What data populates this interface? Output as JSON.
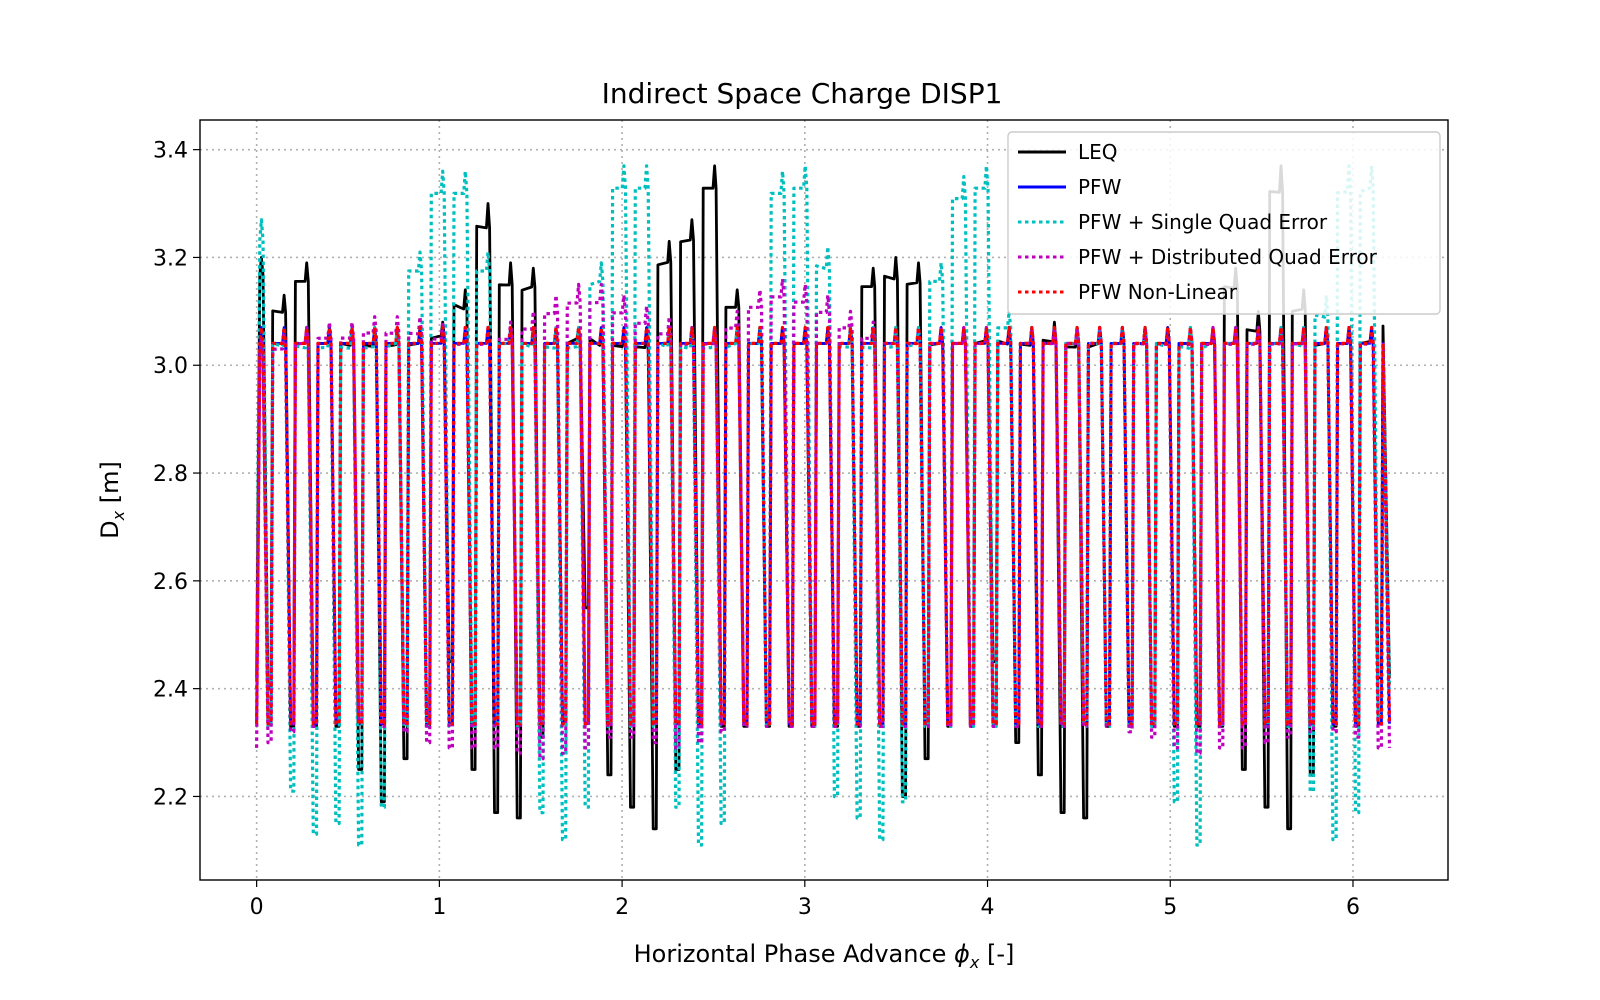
{
  "chart_data": {
    "type": "line",
    "title": "Indirect Space Charge DISP1",
    "xlabel_parts": [
      "Horizontal Phase Advance ",
      "ϕ",
      "x",
      " [-]"
    ],
    "ylabel_parts": [
      "D",
      "x",
      " [m]"
    ],
    "xlim": [
      -0.31,
      6.52
    ],
    "ylim": [
      2.045,
      3.455
    ],
    "xticks": [
      0,
      1,
      2,
      3,
      4,
      5,
      6
    ],
    "xtick_labels": [
      "0",
      "1",
      "2",
      "3",
      "4",
      "5",
      "6"
    ],
    "yticks": [
      2.2,
      2.4,
      2.6,
      2.8,
      3.0,
      3.2,
      3.4
    ],
    "ytick_labels": [
      "2.2",
      "2.4",
      "2.6",
      "2.8",
      "3.0",
      "3.2",
      "3.4"
    ],
    "grid": true,
    "legend_position": "top-right",
    "x_start": 0.0,
    "x_end": 6.2,
    "cells": 50,
    "series": [
      {
        "name": "LEQ",
        "color": "#000000",
        "style": "solid",
        "start": 2.42,
        "peaks": [
          3.2,
          3.13,
          3.19,
          3.07,
          3.07,
          3.07,
          3.07,
          3.07,
          3.08,
          3.14,
          3.3,
          3.19,
          3.18,
          3.07,
          3.07,
          3.07,
          3.07,
          3.07,
          3.23,
          3.27,
          3.37,
          3.14,
          3.07,
          3.07,
          3.07,
          3.07,
          3.07,
          3.18,
          3.2,
          3.19,
          3.07,
          3.07,
          3.07,
          3.07,
          3.07,
          3.08,
          3.07,
          3.07,
          3.07,
          3.07,
          3.07,
          3.07,
          3.07,
          3.18,
          3.1,
          3.37,
          3.14,
          3.07,
          3.07,
          3.07,
          3.1
        ],
        "troughs": [
          2.4,
          2.33,
          2.33,
          2.33,
          2.25,
          2.19,
          2.27,
          2.33,
          2.45,
          2.25,
          2.17,
          2.16,
          2.31,
          2.34,
          2.55,
          2.24,
          2.18,
          2.14,
          2.25,
          2.33,
          2.33,
          2.33,
          2.33,
          2.33,
          2.33,
          2.33,
          2.33,
          2.33,
          2.2,
          2.27,
          2.33,
          2.33,
          2.45,
          2.3,
          2.24,
          2.17,
          2.16,
          2.33,
          2.33,
          2.33,
          2.33,
          2.33,
          2.33,
          2.25,
          2.18,
          2.14,
          2.24,
          2.33,
          2.33,
          2.42
        ]
      },
      {
        "name": "PFW",
        "color": "#0000ff",
        "style": "solid",
        "start": 2.335,
        "peaks": [
          3.07,
          3.07,
          3.07,
          3.07,
          3.07,
          3.07,
          3.07,
          3.07,
          3.07,
          3.07,
          3.07,
          3.07,
          3.07,
          3.07,
          3.07,
          3.07,
          3.07,
          3.07,
          3.07,
          3.07,
          3.07,
          3.07,
          3.07,
          3.07,
          3.07,
          3.07,
          3.07,
          3.07,
          3.07,
          3.07,
          3.07,
          3.07,
          3.07,
          3.07,
          3.07,
          3.07,
          3.07,
          3.07,
          3.07,
          3.07,
          3.07,
          3.07,
          3.07,
          3.07,
          3.07,
          3.07,
          3.07,
          3.07,
          3.07,
          3.07,
          3.07
        ],
        "troughs": [
          2.335,
          2.335,
          2.335,
          2.335,
          2.335,
          2.335,
          2.335,
          2.335,
          2.335,
          2.335,
          2.335,
          2.335,
          2.335,
          2.335,
          2.335,
          2.335,
          2.335,
          2.335,
          2.335,
          2.335,
          2.335,
          2.335,
          2.335,
          2.335,
          2.335,
          2.335,
          2.335,
          2.335,
          2.335,
          2.335,
          2.335,
          2.335,
          2.335,
          2.335,
          2.335,
          2.335,
          2.335,
          2.335,
          2.335,
          2.335,
          2.335,
          2.335,
          2.335,
          2.335,
          2.335,
          2.335,
          2.335,
          2.335,
          2.335,
          2.335
        ]
      },
      {
        "name": "PFW + Single Quad Error",
        "color": "#00bfbf",
        "style": "dotted",
        "start": 2.4,
        "peaks": [
          3.27,
          3.07,
          3.07,
          3.07,
          3.07,
          3.07,
          3.07,
          3.21,
          3.36,
          3.36,
          3.21,
          3.07,
          3.07,
          3.07,
          3.07,
          3.19,
          3.37,
          3.37,
          3.07,
          3.07,
          3.07,
          3.07,
          3.07,
          3.36,
          3.37,
          3.22,
          3.07,
          3.07,
          3.07,
          3.07,
          3.19,
          3.35,
          3.37,
          3.1,
          3.07,
          3.07,
          3.07,
          3.07,
          3.07,
          3.07,
          3.07,
          3.07,
          3.07,
          3.07,
          3.07,
          3.07,
          3.07,
          3.13,
          3.37,
          3.37,
          3.07
        ],
        "troughs": [
          2.33,
          2.21,
          2.13,
          2.15,
          2.11,
          2.18,
          2.33,
          2.33,
          2.33,
          2.33,
          2.33,
          2.33,
          2.17,
          2.12,
          2.18,
          2.33,
          2.33,
          2.33,
          2.18,
          2.11,
          2.15,
          2.33,
          2.33,
          2.33,
          2.33,
          2.2,
          2.16,
          2.12,
          2.19,
          2.33,
          2.33,
          2.33,
          2.33,
          2.33,
          2.33,
          2.33,
          2.33,
          2.33,
          2.33,
          2.33,
          2.19,
          2.11,
          2.33,
          2.33,
          2.33,
          2.33,
          2.21,
          2.12,
          2.17,
          2.35
        ]
      },
      {
        "name": "PFW + Distributed Quad Error",
        "color": "#bf00bf",
        "style": "dotted",
        "start": 2.29,
        "peaks": [
          3.05,
          3.06,
          3.07,
          3.08,
          3.08,
          3.09,
          3.09,
          3.09,
          3.08,
          3.07,
          3.07,
          3.08,
          3.1,
          3.13,
          3.15,
          3.15,
          3.13,
          3.11,
          3.09,
          3.07,
          3.07,
          3.1,
          3.14,
          3.16,
          3.15,
          3.13,
          3.1,
          3.08,
          3.07,
          3.07,
          3.07,
          3.07,
          3.07,
          3.07,
          3.07,
          3.07,
          3.07,
          3.07,
          3.07,
          3.07,
          3.07,
          3.07,
          3.07,
          3.07,
          3.07,
          3.07,
          3.07,
          3.07,
          3.07,
          3.07,
          3.07
        ],
        "troughs": [
          2.3,
          2.32,
          2.33,
          2.34,
          2.34,
          2.33,
          2.32,
          2.3,
          2.29,
          2.29,
          2.29,
          2.28,
          2.27,
          2.28,
          2.29,
          2.31,
          2.31,
          2.3,
          2.29,
          2.3,
          2.32,
          2.33,
          2.33,
          2.33,
          2.33,
          2.33,
          2.33,
          2.33,
          2.33,
          2.33,
          2.33,
          2.33,
          2.33,
          2.33,
          2.33,
          2.33,
          2.33,
          2.33,
          2.32,
          2.31,
          2.29,
          2.28,
          2.29,
          2.29,
          2.3,
          2.31,
          2.32,
          2.32,
          2.31,
          2.29
        ]
      },
      {
        "name": "PFW Non-Linear",
        "color": "#ff0000",
        "style": "dotted",
        "start": 2.335,
        "peaks": [
          3.07,
          3.07,
          3.07,
          3.07,
          3.07,
          3.07,
          3.07,
          3.07,
          3.07,
          3.07,
          3.07,
          3.07,
          3.07,
          3.07,
          3.07,
          3.07,
          3.07,
          3.07,
          3.07,
          3.07,
          3.07,
          3.07,
          3.07,
          3.07,
          3.07,
          3.07,
          3.07,
          3.07,
          3.07,
          3.07,
          3.07,
          3.07,
          3.07,
          3.07,
          3.07,
          3.07,
          3.07,
          3.07,
          3.07,
          3.07,
          3.07,
          3.07,
          3.07,
          3.07,
          3.07,
          3.07,
          3.07,
          3.07,
          3.07,
          3.07,
          3.07
        ],
        "troughs": [
          2.335,
          2.335,
          2.335,
          2.335,
          2.335,
          2.335,
          2.335,
          2.335,
          2.335,
          2.335,
          2.335,
          2.335,
          2.335,
          2.335,
          2.335,
          2.335,
          2.335,
          2.335,
          2.335,
          2.335,
          2.335,
          2.335,
          2.335,
          2.335,
          2.335,
          2.335,
          2.335,
          2.335,
          2.335,
          2.335,
          2.335,
          2.335,
          2.335,
          2.335,
          2.335,
          2.335,
          2.335,
          2.335,
          2.335,
          2.335,
          2.335,
          2.335,
          2.335,
          2.335,
          2.335,
          2.335,
          2.335,
          2.335,
          2.335,
          2.335
        ]
      }
    ]
  }
}
